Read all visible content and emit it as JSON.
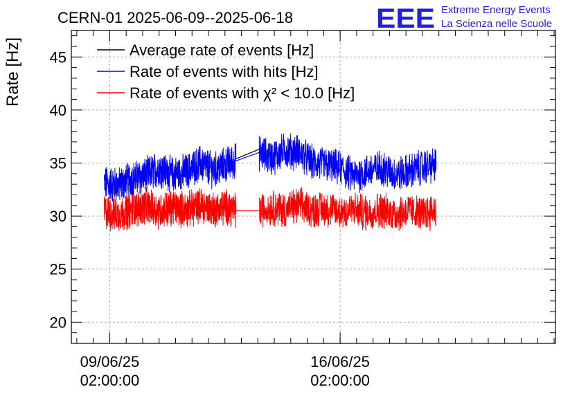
{
  "header": {
    "title": "CERN-01 2025-06-09--2025-06-18",
    "logo_text": "EEE",
    "logo_line1": "Extreme Energy Events",
    "logo_line2": "La Scienza nelle Scuole"
  },
  "chart_data": {
    "type": "line",
    "ylabel": "Rate [Hz]",
    "ylim": [
      18,
      47.5
    ],
    "yticks": [
      20,
      25,
      30,
      35,
      40,
      45
    ],
    "xlim": [
      "2025-06-07T22:00",
      "2025-06-22T15:00"
    ],
    "xticks": [
      {
        "date": "2025-06-09T02:00",
        "line1": "09/06/25",
        "line2": "02:00:00"
      },
      {
        "date": "2025-06-16T02:00",
        "line1": "16/06/25",
        "line2": "02:00:00"
      }
    ],
    "grid": true,
    "legend_position": "top-left",
    "gap": [
      "2025-06-12T22:00",
      "2025-06-13T15:00"
    ],
    "series": [
      {
        "name": "Average rate of events [Hz]",
        "color": "#000000",
        "points": [
          [
            "2025-06-12T22:00",
            35.4
          ],
          [
            "2025-06-13T15:00",
            36.3
          ]
        ]
      },
      {
        "name": "Rate of events with hits [Hz]",
        "color": "#0000ff",
        "points": [
          [
            "2025-06-08T22:00",
            33.1
          ],
          [
            "2025-06-09T08:00",
            32.9
          ],
          [
            "2025-06-09T18:00",
            33.5
          ],
          [
            "2025-06-10T04:00",
            33.8
          ],
          [
            "2025-06-10T14:00",
            34.5
          ],
          [
            "2025-06-11T00:00",
            33.9
          ],
          [
            "2025-06-11T10:00",
            34.2
          ],
          [
            "2025-06-11T20:00",
            35.0
          ],
          [
            "2025-06-12T06:00",
            34.3
          ],
          [
            "2025-06-12T16:00",
            34.9
          ],
          [
            "2025-06-12T22:00",
            35.2
          ],
          [
            "2025-06-13T15:00",
            36.0
          ],
          [
            "2025-06-14T00:00",
            35.5
          ],
          [
            "2025-06-14T10:00",
            36.2
          ],
          [
            "2025-06-14T20:00",
            36.0
          ],
          [
            "2025-06-15T06:00",
            35.0
          ],
          [
            "2025-06-15T16:00",
            34.8
          ],
          [
            "2025-06-16T02:00",
            34.5
          ],
          [
            "2025-06-16T12:00",
            33.8
          ],
          [
            "2025-06-16T22:00",
            34.2
          ],
          [
            "2025-06-17T08:00",
            34.6
          ],
          [
            "2025-06-17T18:00",
            33.9
          ],
          [
            "2025-06-18T04:00",
            34.2
          ],
          [
            "2025-06-18T14:00",
            34.6
          ],
          [
            "2025-06-19T00:00",
            34.8
          ]
        ],
        "band": 1.5
      },
      {
        "name": "Rate of events with χ² < 10.0 [Hz]",
        "color": "#ff0000",
        "points": [
          [
            "2025-06-08T22:00",
            30.4
          ],
          [
            "2025-06-09T08:00",
            30.1
          ],
          [
            "2025-06-09T18:00",
            30.6
          ],
          [
            "2025-06-10T04:00",
            30.9
          ],
          [
            "2025-06-10T14:00",
            30.5
          ],
          [
            "2025-06-11T00:00",
            30.8
          ],
          [
            "2025-06-11T10:00",
            30.6
          ],
          [
            "2025-06-11T20:00",
            31.0
          ],
          [
            "2025-06-12T06:00",
            30.6
          ],
          [
            "2025-06-12T16:00",
            30.9
          ],
          [
            "2025-06-12T22:00",
            30.5
          ],
          [
            "2025-06-13T15:00",
            30.5
          ],
          [
            "2025-06-14T00:00",
            30.8
          ],
          [
            "2025-06-14T10:00",
            30.6
          ],
          [
            "2025-06-14T20:00",
            31.0
          ],
          [
            "2025-06-15T06:00",
            30.6
          ],
          [
            "2025-06-15T16:00",
            30.7
          ],
          [
            "2025-06-16T02:00",
            30.4
          ],
          [
            "2025-06-16T12:00",
            30.6
          ],
          [
            "2025-06-16T22:00",
            30.3
          ],
          [
            "2025-06-17T08:00",
            30.6
          ],
          [
            "2025-06-17T18:00",
            30.2
          ],
          [
            "2025-06-18T04:00",
            30.5
          ],
          [
            "2025-06-18T14:00",
            30.2
          ],
          [
            "2025-06-19T00:00",
            30.6
          ]
        ],
        "band": 1.5
      }
    ]
  }
}
